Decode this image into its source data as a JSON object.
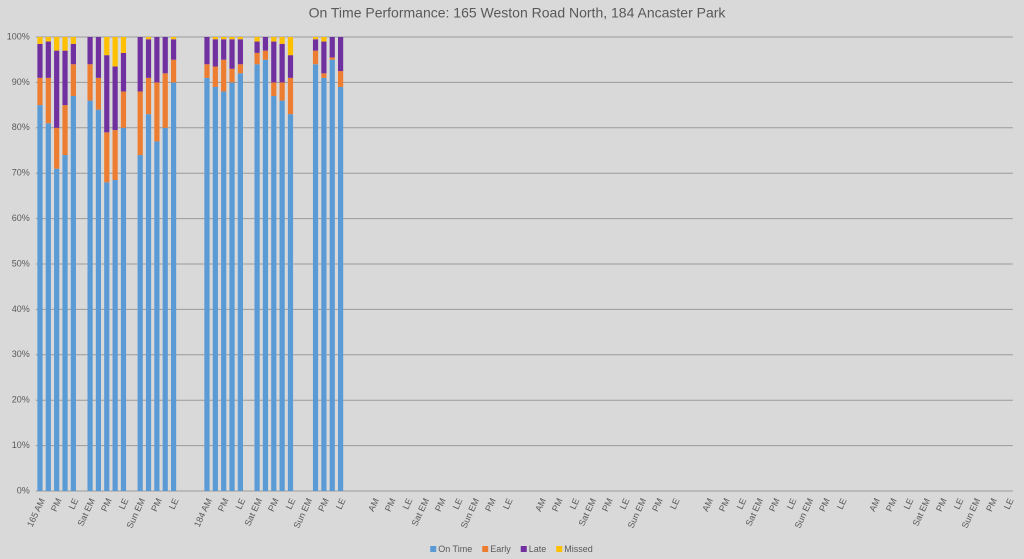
{
  "chart_data": {
    "type": "stacked_bar",
    "title": "On Time Performance: 165 Weston Road North, 184 Ancaster Park",
    "categories": [
      "165 AM",
      null,
      "PM",
      null,
      "LE",
      null,
      "Sat EM",
      null,
      "PM",
      null,
      "LE",
      null,
      "Sun EM",
      null,
      "PM",
      null,
      "LE",
      null,
      null,
      null,
      "184 AM",
      null,
      "PM",
      null,
      "LE",
      null,
      "Sat EM",
      null,
      "PM",
      null,
      "LE",
      null,
      "Sun EM",
      null,
      "PM",
      null,
      "LE",
      null,
      null,
      null,
      "AM",
      null,
      "PM",
      null,
      "LE",
      null,
      "Sat EM",
      null,
      "PM",
      null,
      "LE",
      null,
      "Sun EM",
      null,
      "PM",
      null,
      "LE",
      null,
      null,
      null,
      "AM",
      null,
      "PM",
      null,
      "LE",
      null,
      "Sat EM",
      null,
      "PM",
      null,
      "LE",
      null,
      "Sun EM",
      null,
      "PM",
      null,
      "LE",
      null,
      null,
      null,
      "AM",
      null,
      "PM",
      null,
      "LE",
      null,
      "Sat EM",
      null,
      "PM",
      null,
      "LE",
      null,
      "Sun EM",
      null,
      "PM",
      null,
      "LE",
      null,
      null,
      null,
      "AM",
      null,
      "PM",
      null,
      "LE",
      null,
      "Sat EM",
      null,
      "PM",
      null,
      "LE",
      null,
      "Sun EM",
      null,
      "PM",
      null,
      "LE"
    ],
    "series": [
      {
        "name": "On Time",
        "color": "#5b9bd5",
        "values": [
          85,
          81,
          71,
          74,
          87,
          null,
          86,
          84,
          68,
          68.5,
          80,
          null,
          74,
          83,
          77,
          80,
          90,
          null,
          null,
          null,
          91,
          89,
          88,
          90,
          92,
          null,
          94,
          95,
          87,
          86,
          83,
          null,
          null,
          94,
          91,
          95,
          89,
          null,
          null,
          null,
          null,
          null,
          null,
          null,
          null,
          null,
          null,
          null,
          null,
          null,
          null,
          null,
          null,
          null,
          null,
          null,
          null,
          null,
          null,
          null,
          null,
          null,
          null,
          null,
          null,
          null,
          null,
          null,
          null,
          null,
          null,
          null,
          null,
          null,
          null,
          null,
          null,
          null,
          null,
          null,
          null,
          null,
          null,
          null,
          null,
          null,
          null,
          null,
          null,
          null,
          null,
          null,
          null,
          null,
          null,
          null,
          null,
          null,
          null,
          null,
          null,
          null,
          null,
          null,
          null,
          null,
          null,
          null,
          null,
          null,
          null,
          null,
          null,
          null,
          null,
          null,
          null
        ]
      },
      {
        "name": "Early",
        "color": "#ed7d31",
        "values": [
          6,
          10,
          9,
          11,
          7,
          null,
          8,
          7,
          11,
          11,
          8,
          null,
          14,
          8,
          13,
          12,
          5,
          null,
          null,
          null,
          3,
          4.5,
          7,
          3,
          2,
          null,
          2.5,
          2,
          3,
          4,
          8,
          null,
          null,
          3,
          1,
          0.5,
          3.5,
          null,
          null,
          null,
          null,
          null,
          null,
          null,
          null,
          null,
          null,
          null,
          null,
          null,
          null,
          null,
          null,
          null,
          null,
          null,
          null,
          null,
          null,
          null,
          null,
          null,
          null,
          null,
          null,
          null,
          null,
          null,
          null,
          null,
          null,
          null,
          null,
          null,
          null,
          null,
          null,
          null,
          null,
          null,
          null,
          null,
          null,
          null,
          null,
          null,
          null,
          null,
          null,
          null,
          null,
          null,
          null,
          null,
          null,
          null,
          null,
          null,
          null,
          null,
          null,
          null,
          null,
          null,
          null,
          null,
          null,
          null,
          null,
          null,
          null,
          null,
          null,
          null,
          null,
          null,
          null
        ]
      },
      {
        "name": "Late",
        "color": "#7030a0",
        "values": [
          7.5,
          8,
          17,
          12,
          4.5,
          null,
          6,
          9,
          17,
          14,
          8.5,
          null,
          12,
          8.5,
          10,
          8,
          4.5,
          null,
          null,
          null,
          6,
          6,
          4.5,
          6.5,
          5.5,
          null,
          2.5,
          3,
          9,
          8.5,
          5,
          null,
          null,
          2.5,
          7,
          4.5,
          7.5,
          null,
          null,
          null,
          null,
          null,
          null,
          null,
          null,
          null,
          null,
          null,
          null,
          null,
          null,
          null,
          null,
          null,
          null,
          null,
          null,
          null,
          null,
          null,
          null,
          null,
          null,
          null,
          null,
          null,
          null,
          null,
          null,
          null,
          null,
          null,
          null,
          null,
          null,
          null,
          null,
          null,
          null,
          null,
          null,
          null,
          null,
          null,
          null,
          null,
          null,
          null,
          null,
          null,
          null,
          null,
          null,
          null,
          null,
          null,
          null,
          null,
          null,
          null,
          null,
          null,
          null,
          null,
          null,
          null,
          null,
          null,
          null,
          null,
          null,
          null,
          null,
          null,
          null,
          null,
          null
        ]
      },
      {
        "name": "Missed",
        "color": "#ffc000",
        "values": [
          1.5,
          1,
          3,
          3,
          1.5,
          null,
          0,
          0,
          4,
          6.5,
          3.5,
          null,
          0,
          0.5,
          0,
          0,
          0.5,
          null,
          null,
          null,
          0,
          0.5,
          0.5,
          0.5,
          0.5,
          null,
          1,
          0,
          1,
          1.5,
          4,
          null,
          null,
          0.5,
          1,
          0,
          0,
          null,
          null,
          null,
          null,
          null,
          null,
          null,
          null,
          null,
          null,
          null,
          null,
          null,
          null,
          null,
          null,
          null,
          null,
          null,
          null,
          null,
          null,
          null,
          null,
          null,
          null,
          null,
          null,
          null,
          null,
          null,
          null,
          null,
          null,
          null,
          null,
          null,
          null,
          null,
          null,
          null,
          null,
          null,
          null,
          null,
          null,
          null,
          null,
          null,
          null,
          null,
          null,
          null,
          null,
          null,
          null,
          null,
          null,
          null,
          null,
          null,
          null,
          null,
          null,
          null,
          null,
          null,
          null,
          null,
          null,
          null,
          null,
          null,
          null,
          null,
          null,
          null,
          null,
          null,
          null
        ]
      }
    ],
    "ylim": [
      0,
      100
    ],
    "yticks": [
      {
        "value": 0,
        "label": "0%"
      },
      {
        "value": 10,
        "label": "10%"
      },
      {
        "value": 20,
        "label": "20%"
      },
      {
        "value": 30,
        "label": "30%"
      },
      {
        "value": 40,
        "label": "40%"
      },
      {
        "value": 50,
        "label": "50%"
      },
      {
        "value": 60,
        "label": "60%"
      },
      {
        "value": 70,
        "label": "70%"
      },
      {
        "value": 80,
        "label": "80%"
      },
      {
        "value": 90,
        "label": "90%"
      },
      {
        "value": 100,
        "label": "100%"
      }
    ],
    "grid": true,
    "legend": "bottom"
  }
}
